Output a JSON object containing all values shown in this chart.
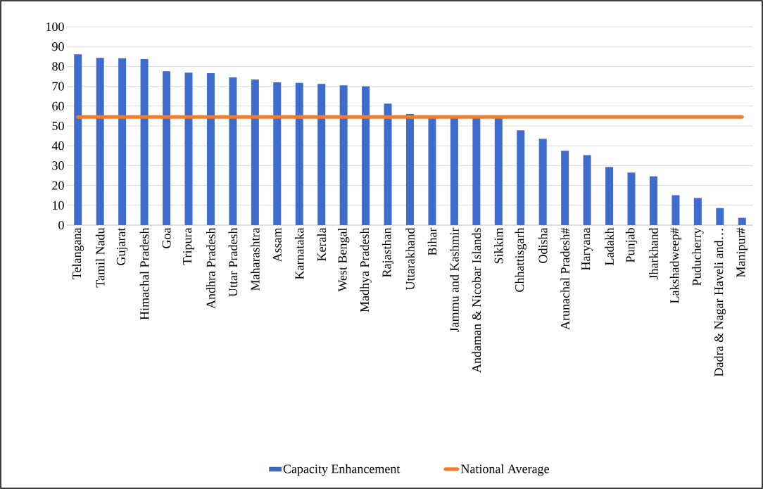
{
  "chart_data": {
    "type": "bar",
    "categories": [
      "Telangana",
      "Tamil Nadu",
      "Gujarat",
      "Himachal Pradesh",
      "Goa",
      "Tripura",
      "Andhra Pradesh",
      "Uttar Pradesh",
      "Maharashtra",
      "Assam",
      "Karnataka",
      "Kerala",
      "West Bengal",
      "Madhya Pradesh",
      "Rajasthan",
      "Uttarakhand",
      "Bihar",
      "Jammu and Kashmir",
      "Andaman & Nicobar Islands",
      "Sikkim",
      "Chhattisgarh",
      "Odisha",
      "Arunachal Pradesh#",
      "Haryana",
      "Ladakh",
      "Punjab",
      "Jharkhand",
      "Lakshadweep#",
      "Puducherry",
      "Dadra & Nagar Haveli and…",
      "Manipur#"
    ],
    "series": [
      {
        "name": "Capacity Enhancement",
        "color": "#3f6ccb",
        "values": [
          86.1,
          84.3,
          84.1,
          83.7,
          77.6,
          76.9,
          76.6,
          74.5,
          73.4,
          72.0,
          71.7,
          71.2,
          70.5,
          69.9,
          61.3,
          56.0,
          54,
          54,
          54,
          54,
          47.8,
          43.5,
          37.5,
          35.3,
          29.3,
          26.5,
          24.6,
          15.1,
          13.7,
          8.6,
          3.7
        ]
      },
      {
        "name": "National Average",
        "type": "line",
        "color": "#ed7d31",
        "values": [
          54.5,
          54.5,
          54.5,
          54.5,
          54.5,
          54.5,
          54.5,
          54.5,
          54.5,
          54.5,
          54.5,
          54.5,
          54.5,
          54.5,
          54.5,
          54.5,
          54.5,
          54.5,
          54.5,
          54.5,
          54.5,
          54.5,
          54.5,
          54.5,
          54.5,
          54.5,
          54.5,
          54.5,
          54.5,
          54.5,
          54.5
        ]
      }
    ],
    "ylim": [
      0,
      100
    ],
    "yticks": [
      0,
      10,
      20,
      30,
      40,
      50,
      60,
      70,
      80,
      90,
      100
    ],
    "grid": "y",
    "legend": "bottom"
  }
}
